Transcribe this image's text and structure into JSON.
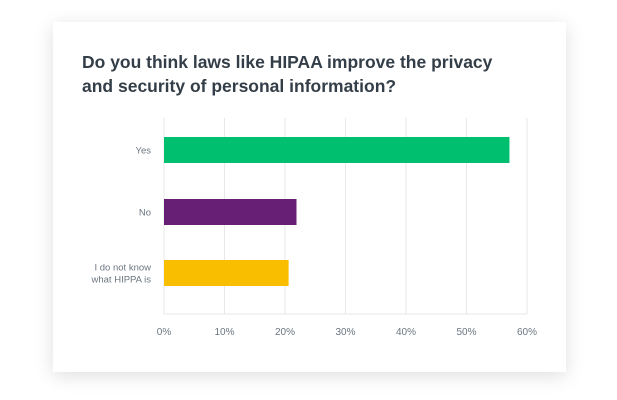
{
  "chart_data": {
    "type": "bar",
    "orientation": "horizontal",
    "title": "Do you think laws like HIPAA improve the privacy and security of personal information?",
    "categories": [
      "Yes",
      "No",
      "I do not know what HIPPA is"
    ],
    "category_lines": [
      [
        "Yes"
      ],
      [
        "No"
      ],
      [
        "I do not know",
        "what HIPPA is"
      ]
    ],
    "values": [
      57.1,
      21.9,
      20.6
    ],
    "colors": [
      "#00bf6f",
      "#671e75",
      "#f9be00"
    ],
    "xlim": [
      0,
      60
    ],
    "xticks": [
      "0%",
      "10%",
      "20%",
      "30%",
      "40%",
      "50%",
      "60%"
    ],
    "xlabel": "",
    "ylabel": "",
    "grid": true,
    "legend": "none"
  }
}
